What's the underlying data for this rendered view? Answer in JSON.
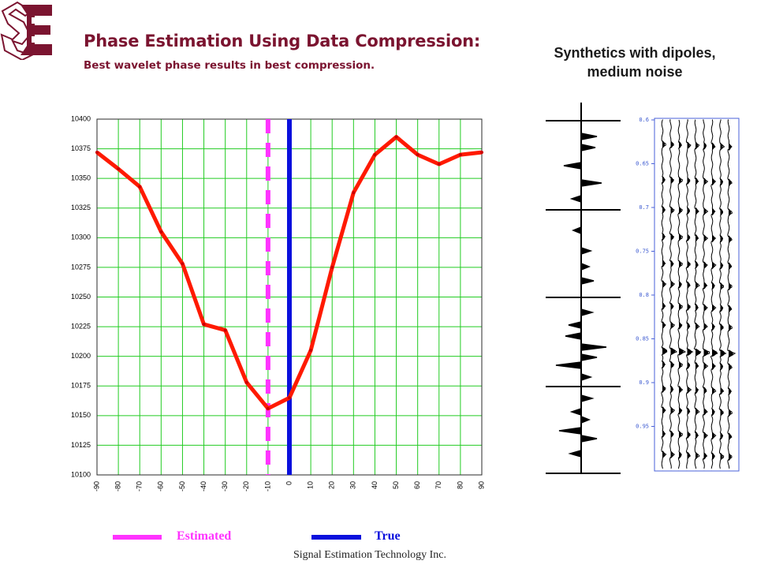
{
  "header": {
    "title": "Phase Estimation Using Data Compression:",
    "subtitle": "Best wavelet phase results in best compression."
  },
  "side_panel": {
    "title_lines": [
      "Synthetics with dipoles,",
      "medium noise"
    ],
    "seismic_time_labels": [
      "0.6",
      "0.65",
      "0.7",
      "0.75",
      "0.8",
      "0.85",
      "0.9",
      "0.95"
    ]
  },
  "legend": {
    "estimated_label": "Estimated",
    "true_label": "True",
    "estimated_color": "#ff33ff",
    "true_color": "#0a10dd"
  },
  "footer": {
    "text": "Signal Estimation Technology Inc."
  },
  "colors": {
    "brand": "#7b1430",
    "curve": "#ff1a00",
    "grid": "#22cc22"
  },
  "icons": {
    "logo": "set-logo"
  },
  "chart_data": {
    "type": "line",
    "title": "",
    "xlabel": "",
    "ylabel": "",
    "x": [
      -90,
      -80,
      -70,
      -60,
      -50,
      -40,
      -30,
      -20,
      -10,
      0,
      10,
      20,
      30,
      40,
      50,
      60,
      70,
      80,
      90
    ],
    "x_ticks": [
      "-90",
      "-80",
      "-70",
      "-60",
      "-50",
      "-40",
      "-30",
      "-20",
      "-10",
      "0",
      "10",
      "20",
      "30",
      "40",
      "50",
      "60",
      "70",
      "80",
      "90"
    ],
    "y_ticks": [
      "10400",
      "10375",
      "10350",
      "10325",
      "10300",
      "10275",
      "10250",
      "10225",
      "10200",
      "10175",
      "10150",
      "10125",
      "10100"
    ],
    "xlim": [
      -90,
      90
    ],
    "ylim": [
      10100,
      10400
    ],
    "grid": true,
    "series": [
      {
        "values": [
          10372,
          10358,
          10343,
          10305,
          10278,
          10227,
          10222,
          10178,
          10156,
          10165,
          10205,
          10275,
          10338,
          10370,
          10385,
          10370,
          10362,
          10370,
          10372
        ]
      }
    ],
    "markers": [
      {
        "label": "Estimated",
        "x": -10,
        "style": "dashed"
      },
      {
        "label": "True",
        "x": 0,
        "style": "solid"
      }
    ]
  }
}
